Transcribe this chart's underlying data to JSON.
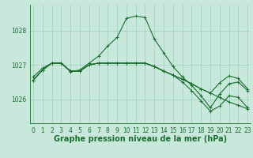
{
  "title": "Graphe pression niveau de la mer (hPa)",
  "background_color": "#c8e8dc",
  "grid_color": "#9ecfbe",
  "line_color": "#1a6e2e",
  "xlim": [
    -0.3,
    23.3
  ],
  "ylim": [
    1025.3,
    1028.75
  ],
  "yticks": [
    1026,
    1027,
    1028
  ],
  "xticks": [
    0,
    1,
    2,
    3,
    4,
    5,
    6,
    7,
    8,
    9,
    10,
    11,
    12,
    13,
    14,
    15,
    16,
    17,
    18,
    19,
    20,
    21,
    22,
    23
  ],
  "series": [
    [
      1026.65,
      1026.9,
      1027.05,
      1027.05,
      1026.8,
      1026.85,
      1027.05,
      1027.25,
      1027.55,
      1027.8,
      1028.35,
      1028.42,
      1028.38,
      1027.75,
      1027.35,
      1026.95,
      1026.65,
      1026.4,
      1026.1,
      1025.75,
      1026.15,
      1026.45,
      1026.5,
      1026.25
    ],
    [
      1026.55,
      1026.85,
      1027.05,
      1027.05,
      1026.82,
      1026.82,
      1027.0,
      1027.05,
      1027.05,
      1027.05,
      1027.05,
      1027.05,
      1027.05,
      1026.95,
      1026.82,
      1026.7,
      1026.58,
      1026.45,
      1026.3,
      1026.18,
      1026.05,
      1025.92,
      1025.82,
      1025.72
    ],
    [
      1026.55,
      1026.85,
      1027.05,
      1027.05,
      1026.82,
      1026.82,
      1027.0,
      1027.05,
      1027.05,
      1027.05,
      1027.05,
      1027.05,
      1027.05,
      1026.95,
      1026.82,
      1026.7,
      1026.58,
      1026.45,
      1026.3,
      1026.18,
      1026.48,
      1026.68,
      1026.6,
      1026.3
    ],
    [
      1026.55,
      1026.85,
      1027.05,
      1027.05,
      1026.82,
      1026.82,
      1027.0,
      1027.05,
      1027.05,
      1027.05,
      1027.05,
      1027.05,
      1027.05,
      1026.95,
      1026.82,
      1026.7,
      1026.5,
      1026.25,
      1025.95,
      1025.65,
      1025.8,
      1026.1,
      1026.05,
      1025.75
    ]
  ],
  "marker": "+",
  "markersize": 3,
  "linewidth": 0.8,
  "tick_fontsize": 5.5,
  "title_fontsize": 7.0
}
